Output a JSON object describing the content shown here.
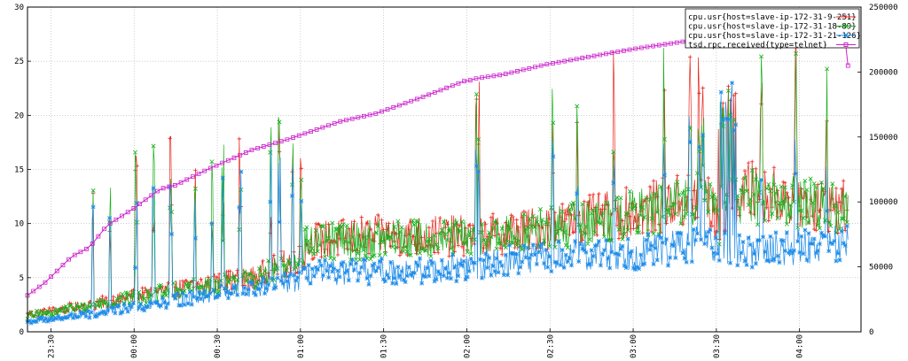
{
  "chart_data": {
    "type": "line",
    "xlabel": "",
    "ylabel": "",
    "y2label": "",
    "ylim": [
      0,
      30
    ],
    "y2lim": [
      0,
      250000
    ],
    "ytick_labels": [
      "0",
      "5",
      "10",
      "15",
      "20",
      "25",
      "30"
    ],
    "y2tick_labels": [
      "0",
      "50000",
      "100000",
      "150000",
      "200000",
      "250000"
    ],
    "xtick_labels": [
      "23:30",
      "00:00",
      "00:30",
      "01:00",
      "01:30",
      "02:00",
      "02:30",
      "03:00",
      "03:30",
      "04:00"
    ],
    "grid": true,
    "legend_position": "top-right",
    "series": [
      {
        "name": "cpu.usr{host=slave-ip-172-31-9-251}",
        "color": "#e8261c",
        "marker": "+",
        "axis": "left",
        "approx_points": [
          [
            0,
            1.5
          ],
          [
            8,
            2.5
          ],
          [
            17,
            3.8
          ],
          [
            26,
            4.8
          ],
          [
            31,
            6.5
          ],
          [
            31.8,
            6.2
          ],
          [
            32.2,
            8
          ],
          [
            40,
            8.5
          ],
          [
            52,
            8.5
          ],
          [
            55,
            8.7
          ],
          [
            69,
            10.5
          ],
          [
            75,
            11.5
          ],
          [
            78,
            12
          ],
          [
            80,
            9
          ],
          [
            81,
            12
          ],
          [
            82,
            11.8
          ],
          [
            83,
            12.5
          ],
          [
            93,
            11
          ]
        ]
      },
      {
        "name": "cpu.usr{host=slave-ip-172-31-18-89}",
        "color": "#18b01c",
        "marker": "x",
        "axis": "left",
        "approx_points": [
          [
            0,
            1.4
          ],
          [
            8,
            2.4
          ],
          [
            17,
            3.6
          ],
          [
            26,
            4.6
          ],
          [
            31,
            6.3
          ],
          [
            32.2,
            7.8
          ],
          [
            40,
            8.2
          ],
          [
            52,
            8.3
          ],
          [
            55,
            8.5
          ],
          [
            69,
            10.3
          ],
          [
            75,
            11.2
          ],
          [
            78,
            11.8
          ],
          [
            80,
            9
          ],
          [
            81,
            11.8
          ],
          [
            83,
            12.2
          ],
          [
            93,
            10.8
          ]
        ]
      },
      {
        "name": "cpu.usr{host=slave-ip-172-31-21-126}",
        "color": "#1e8ce8",
        "marker": "*",
        "axis": "left",
        "approx_points": [
          [
            0,
            0.9
          ],
          [
            8,
            1.6
          ],
          [
            17,
            2.8
          ],
          [
            26,
            3.8
          ],
          [
            31,
            4.5
          ],
          [
            33,
            5.2
          ],
          [
            45,
            5.4
          ],
          [
            52,
            5.8
          ],
          [
            55,
            6.3
          ],
          [
            65,
            6.8
          ],
          [
            70,
            7
          ],
          [
            75,
            7.5
          ],
          [
            80,
            8
          ],
          [
            81,
            7
          ],
          [
            93,
            7.8
          ]
        ]
      },
      {
        "name": "tsd.rpc.received{type=telnet}",
        "color": "#cc20cc",
        "marker": "square",
        "axis": "right",
        "approx_points": [
          [
            0,
            28000
          ],
          [
            2,
            38000
          ],
          [
            5,
            58000
          ],
          [
            7,
            65000
          ],
          [
            9,
            82000
          ],
          [
            12,
            95000
          ],
          [
            15,
            110000
          ],
          [
            18,
            115000
          ],
          [
            21,
            125000
          ],
          [
            26,
            140000
          ],
          [
            30,
            148000
          ],
          [
            33,
            155000
          ],
          [
            36,
            162000
          ],
          [
            40,
            168000
          ],
          [
            45,
            180000
          ],
          [
            50,
            193000
          ],
          [
            55,
            198000
          ],
          [
            60,
            206000
          ],
          [
            65,
            212000
          ],
          [
            70,
            218000
          ],
          [
            75,
            223000
          ],
          [
            78,
            226000
          ],
          [
            82,
            232000
          ],
          [
            85,
            236000
          ],
          [
            88,
            240000
          ],
          [
            93,
            244000
          ],
          [
            94.2,
            247000
          ],
          [
            94.5,
            205000
          ]
        ]
      }
    ]
  }
}
